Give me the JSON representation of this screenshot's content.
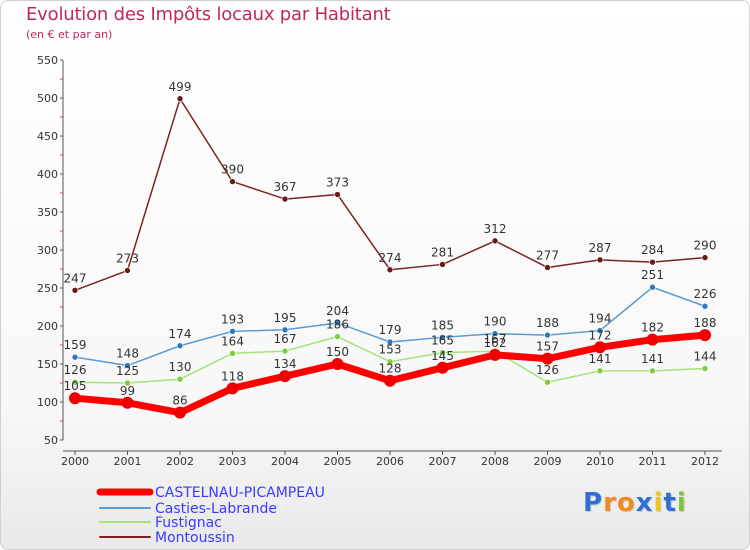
{
  "header": {
    "title": "Evolution des Impôts locaux par Habitant",
    "subtitle": "(en € et par an)"
  },
  "logo": {
    "text": "Proxiti"
  },
  "chart_data": {
    "type": "line",
    "title": "Evolution des Impôts locaux par Habitant",
    "subtitle": "(en € et par an)",
    "xlabel": "",
    "ylabel": "",
    "ylim": [
      50,
      550
    ],
    "yticks": [
      50,
      100,
      150,
      200,
      250,
      300,
      350,
      400,
      450,
      500,
      550
    ],
    "grid": false,
    "legend_position": "bottom-left",
    "x": [
      "2000",
      "2001",
      "2002",
      "2003",
      "2004",
      "2005",
      "2006",
      "2007",
      "2008",
      "2009",
      "2010",
      "2011",
      "2012"
    ],
    "series": [
      {
        "name": "Montoussin",
        "color": "#7b2323",
        "values": [
          247,
          273,
          499,
          390,
          367,
          373,
          274,
          281,
          312,
          277,
          287,
          284,
          290
        ]
      },
      {
        "name": "Casties-Labrande",
        "color": "#5a9bd3",
        "values": [
          159,
          148,
          174,
          193,
          195,
          204,
          179,
          185,
          190,
          188,
          194,
          251,
          226
        ]
      },
      {
        "name": "Fustignac",
        "color": "#9dde6e",
        "values": [
          126,
          125,
          130,
          164,
          167,
          186,
          153,
          165,
          167,
          126,
          141,
          141,
          144
        ]
      },
      {
        "name": "CASTELNAU-PICAMPEAU",
        "color": "#ff0000",
        "values": [
          105,
          99,
          86,
          118,
          134,
          150,
          128,
          145,
          162,
          157,
          172,
          182,
          188
        ]
      }
    ],
    "legend": [
      "CASTELNAU-PICAMPEAU",
      "Casties-Labrande",
      "Fustignac",
      "Montoussin"
    ]
  }
}
